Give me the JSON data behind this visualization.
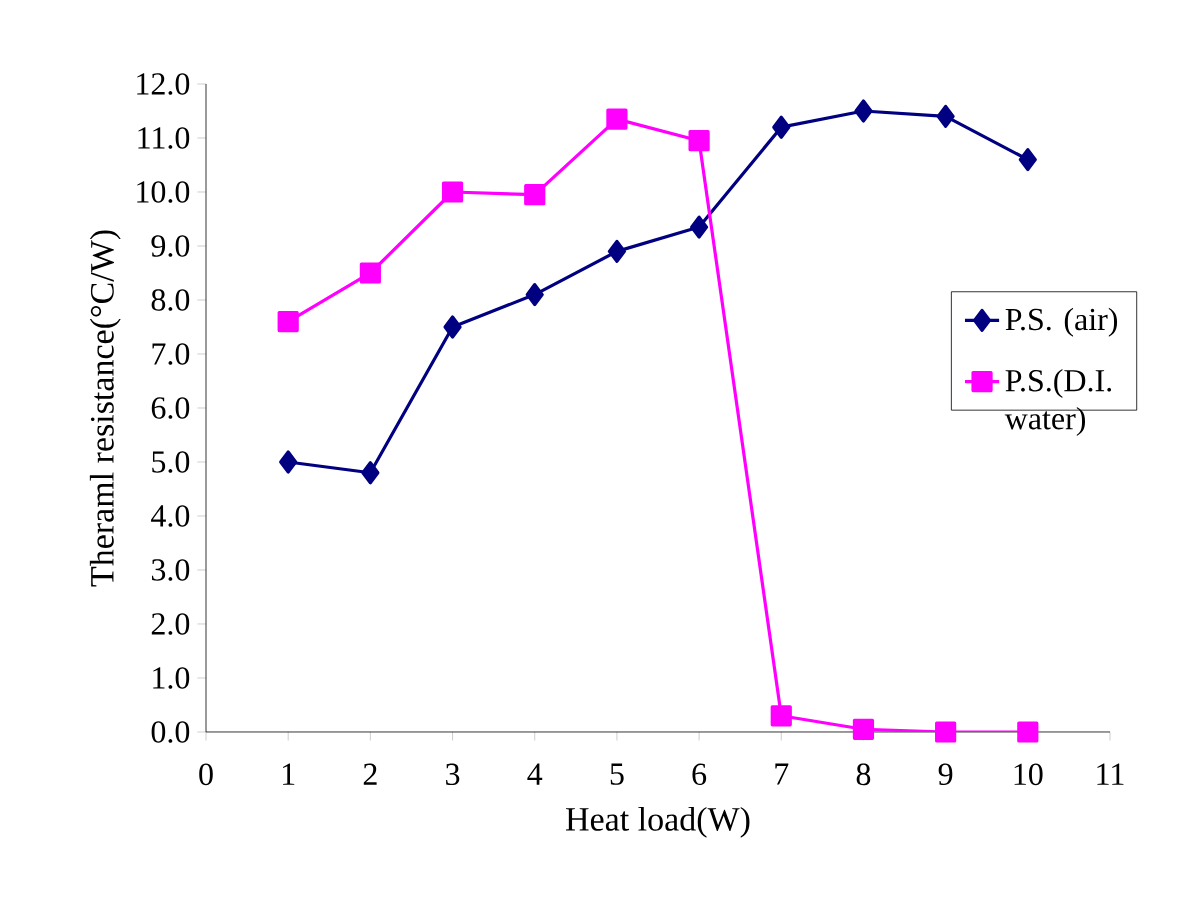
{
  "chart_data": {
    "type": "line",
    "xlabel": "Heat load(W)",
    "ylabel": "Theraml resistance(°C/W)",
    "x": [
      1,
      2,
      3,
      4,
      5,
      6,
      7,
      8,
      9,
      10
    ],
    "series": [
      {
        "name": "P.S. (air)",
        "color": "#000080",
        "marker": "diamond",
        "values": [
          5.0,
          4.8,
          7.5,
          8.1,
          8.9,
          9.35,
          11.2,
          11.5,
          11.4,
          10.6
        ]
      },
      {
        "name": "P.S.(D.I. water)",
        "color": "#ff00ff",
        "marker": "square",
        "values": [
          7.6,
          8.5,
          10.0,
          9.95,
          11.35,
          10.95,
          0.3,
          0.05,
          0.0,
          0.0
        ]
      }
    ],
    "xlim": [
      0,
      11
    ],
    "xticks": [
      0,
      1,
      2,
      3,
      4,
      5,
      6,
      7,
      8,
      9,
      10,
      11
    ],
    "ylim": [
      0,
      12
    ],
    "yticks": [
      {
        "value": 0,
        "label": "0.0"
      },
      {
        "value": 1,
        "label": "1.0"
      },
      {
        "value": 2,
        "label": "2.0"
      },
      {
        "value": 3,
        "label": "3.0"
      },
      {
        "value": 4,
        "label": "4.0"
      },
      {
        "value": 5,
        "label": "5.0"
      },
      {
        "value": 6,
        "label": "6.0"
      },
      {
        "value": 7,
        "label": "7.0"
      },
      {
        "value": 8,
        "label": "8.0"
      },
      {
        "value": 9,
        "label": "9.0"
      },
      {
        "value": 10,
        "label": "10.0"
      },
      {
        "value": 11,
        "label": "11.0"
      },
      {
        "value": 12,
        "label": "12.0"
      }
    ],
    "legend": "right",
    "grid": false,
    "line_style": "solid"
  }
}
